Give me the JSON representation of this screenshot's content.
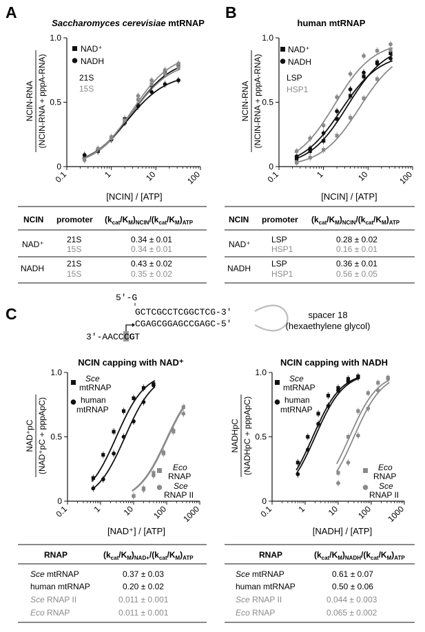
{
  "panels": {
    "A": {
      "letter": "A",
      "title_italic": "Saccharomyces cerevisiae",
      "title_rest": " mtRNAP",
      "ylabel_num": "NCIN-RNA",
      "ylabel_den": "(NCIN-RNA + pppA-RNA)",
      "xlabel": "[NCIN] / [ATP]",
      "legend": [
        "NAD⁺",
        "NADH",
        "21S",
        "15S"
      ],
      "table": {
        "headers": [
          "NCIN",
          "promoter",
          "(kcat/KM)NCIN/(kcat/KM)ATP"
        ],
        "rows": [
          {
            "ncin": "NAD⁺",
            "promoter": "21S",
            "value": "0.34 ± 0.01"
          },
          {
            "ncin": "",
            "promoter": "15S",
            "value": "0.34 ± 0.01"
          },
          {
            "ncin": "NADH",
            "promoter": "21S",
            "value": "0.43 ± 0.02"
          },
          {
            "ncin": "",
            "promoter": "15S",
            "value": "0.35 ± 0.02"
          }
        ]
      }
    },
    "B": {
      "letter": "B",
      "title": "human mtRNAP",
      "ylabel_num": "NCIN-RNA",
      "ylabel_den": "(NCIN-RNA + pppA-RNA)",
      "xlabel": "[NCIN] / [ATP]",
      "legend": [
        "NAD⁺",
        "NADH",
        "LSP",
        "HSP1"
      ],
      "table": {
        "headers": [
          "NCIN",
          "promoter",
          "(kcat/KM)NCIN/(kcat/KM)ATP"
        ],
        "rows": [
          {
            "ncin": "NAD⁺",
            "promoter": "LSP",
            "value": "0.28 ± 0.02"
          },
          {
            "ncin": "",
            "promoter": "HSP1",
            "value": "0.16 ± 0.01"
          },
          {
            "ncin": "NADH",
            "promoter": "LSP",
            "value": "0.36 ± 0.01"
          },
          {
            "ncin": "",
            "promoter": "HSP1",
            "value": "0.56 ± 0.05"
          }
        ]
      }
    },
    "C": {
      "letter": "C",
      "seq_5g": "5'-G",
      "seq_top": "GCTCGCCTCGGCTCG-3'",
      "seq_mid": "CGAGCGGAGCCGAGC-5'",
      "seq_left": "3'-AACCACT",
      "seq_g": "G",
      "seq_c": "C",
      "spacer_1": "spacer 18",
      "spacer_2": "(hexaethylene glycol)",
      "left": {
        "title": "NCIN capping with NAD⁺",
        "ylabel_num": "NAD⁺pC",
        "ylabel_den": "(NAD⁺pC + pppApC)",
        "xlabel": "[NAD⁺] / [ATP]",
        "legend_sce": "Sce",
        "legend_mt": "mtRNAP",
        "legend_human": "human",
        "legend_eco": "Eco",
        "legend_rnap": "RNAP",
        "legend_sce2": "Sce",
        "legend_rnap2": "RNAP II",
        "table": {
          "headers": [
            "RNAP",
            "(kcat/KM)NAD+/(kcat/KM)ATP"
          ],
          "rows": [
            {
              "name_it": "Sce",
              "name_rest": " mtRNAP",
              "value": "0.37 ± 0.03"
            },
            {
              "name_it": "",
              "name_rest": "human mtRNAP",
              "value": "0.20 ± 0.02"
            },
            {
              "name_it": "Sce",
              "name_rest": " RNAP II",
              "value": "0.011 ± 0.001"
            },
            {
              "name_it": "Eco",
              "name_rest": " RNAP",
              "value": "0.011 ± 0.001"
            }
          ]
        }
      },
      "right": {
        "title": "NCIN capping with NADH",
        "ylabel_num": "NADHpC",
        "ylabel_den": "(NADHpC + pppApC)",
        "xlabel": "[NADH] / [ATP]",
        "legend_sce": "Sce",
        "legend_mt": "mtRNAP",
        "legend_human": "human",
        "legend_eco": "Eco",
        "legend_rnap": "RNAP",
        "legend_sce2": "Sce",
        "legend_rnap2": "RNAP II",
        "table": {
          "headers": [
            "RNAP",
            "(kcat/KM)NADH/(kcat/KM)ATP"
          ],
          "rows": [
            {
              "name_it": "Sce",
              "name_rest": " mtRNAP",
              "value": "0.61 ± 0.07"
            },
            {
              "name_it": "",
              "name_rest": "human mtRNAP",
              "value": "0.50 ± 0.06"
            },
            {
              "name_it": "Sce",
              "name_rest": " RNAP II",
              "value": "0.044 ± 0.003"
            },
            {
              "name_it": "Eco",
              "name_rest": " RNAP",
              "value": "0.065 ± 0.002"
            }
          ]
        }
      }
    }
  },
  "colors": {
    "black": "#111111",
    "gray": "#8a8a8a"
  },
  "chart_data": [
    {
      "id": "A",
      "type": "scatter",
      "xscale": "log",
      "xlim": [
        0.1,
        100
      ],
      "ylim": [
        0,
        1
      ],
      "xticks": [
        "0.1",
        "1",
        "10",
        "100"
      ],
      "yticks": [
        "0",
        "0.5",
        "1.0"
      ],
      "series": [
        {
          "name": "NAD⁺ 21S",
          "marker": "square",
          "color": "black",
          "x": [
            0.25,
            0.5,
            1,
            2,
            4,
            8,
            16,
            32
          ],
          "y": [
            0.08,
            0.12,
            0.22,
            0.37,
            0.48,
            0.63,
            0.74,
            0.79
          ],
          "fit": {
            "top": 0.84,
            "ec50": 3.0
          }
        },
        {
          "name": "NAD⁺ 15S",
          "marker": "square",
          "color": "gray",
          "x": [
            0.25,
            0.5,
            1,
            2,
            4,
            8,
            16,
            32
          ],
          "y": [
            0.08,
            0.13,
            0.23,
            0.35,
            0.52,
            0.64,
            0.72,
            0.77
          ],
          "fit": {
            "top": 0.82,
            "ec50": 2.9
          }
        },
        {
          "name": "NADH 21S",
          "marker": "circle",
          "color": "black",
          "x": [
            0.25,
            0.5,
            1,
            2,
            4,
            8,
            16,
            32
          ],
          "y": [
            0.09,
            0.13,
            0.21,
            0.34,
            0.47,
            0.58,
            0.64,
            0.67
          ],
          "fit": {
            "top": 0.72,
            "ec50": 2.3
          }
        },
        {
          "name": "NADH 15S",
          "marker": "circle",
          "color": "gray",
          "x": [
            0.25,
            0.5,
            1,
            2,
            4,
            8,
            16,
            32
          ],
          "y": [
            0.05,
            0.14,
            0.22,
            0.36,
            0.55,
            0.67,
            0.75,
            0.8
          ],
          "fit": {
            "top": 0.88,
            "ec50": 3.0
          }
        }
      ]
    },
    {
      "id": "B",
      "type": "scatter",
      "xscale": "log",
      "xlim": [
        0.1,
        100
      ],
      "ylim": [
        0,
        1
      ],
      "xticks": [
        "0.1",
        "1",
        "10",
        "100"
      ],
      "yticks": [
        "0",
        "0.5",
        "1.0"
      ],
      "series": [
        {
          "name": "NAD⁺ LSP",
          "marker": "square",
          "color": "black",
          "x": [
            0.25,
            0.5,
            1,
            2,
            4,
            8,
            16,
            32
          ],
          "y": [
            0.06,
            0.12,
            0.2,
            0.37,
            0.55,
            0.7,
            0.81,
            0.88
          ],
          "fit": {
            "top": 0.95,
            "ec50": 3.5
          }
        },
        {
          "name": "NAD⁺ HSP1",
          "marker": "square",
          "color": "gray",
          "x": [
            0.25,
            0.5,
            1,
            2,
            4,
            8,
            16,
            32
          ],
          "y": [
            0.03,
            0.07,
            0.13,
            0.24,
            0.38,
            0.53,
            0.68,
            0.91
          ],
          "fit": {
            "top": 0.92,
            "ec50": 6.5
          }
        },
        {
          "name": "NADH LSP",
          "marker": "circle",
          "color": "black",
          "x": [
            0.25,
            0.5,
            1,
            2,
            4,
            8,
            16,
            32
          ],
          "y": [
            0.08,
            0.14,
            0.26,
            0.43,
            0.6,
            0.73,
            0.8,
            0.84
          ],
          "fit": {
            "top": 0.88,
            "ec50": 2.5
          }
        },
        {
          "name": "NADH HSP1",
          "marker": "circle",
          "color": "gray",
          "x": [
            0.25,
            0.5,
            1,
            2,
            4,
            8,
            16,
            32
          ],
          "y": [
            0.12,
            0.22,
            0.32,
            0.54,
            0.72,
            0.86,
            0.9,
            0.95
          ],
          "fit": {
            "top": 0.97,
            "ec50": 1.8
          }
        }
      ]
    },
    {
      "id": "C-left",
      "type": "scatter",
      "xscale": "log",
      "xlim": [
        0.1,
        1000
      ],
      "ylim": [
        0,
        1
      ],
      "xticks": [
        "0.1",
        "1",
        "10",
        "100",
        "1000"
      ],
      "yticks": [
        "0",
        "0.5",
        "1.0"
      ],
      "series": [
        {
          "name": "Sce mtRNAP",
          "marker": "square",
          "color": "black",
          "x": [
            0.6,
            1.2,
            2.5,
            5,
            10,
            20,
            40
          ],
          "y": [
            0.18,
            0.36,
            0.54,
            0.7,
            0.8,
            0.88,
            0.91
          ],
          "fit": {
            "top": 1.0,
            "ec50": 3.0
          }
        },
        {
          "name": "human mtRNAP",
          "marker": "circle",
          "color": "black",
          "x": [
            0.6,
            1.2,
            2.5,
            5,
            10,
            20,
            40
          ],
          "y": [
            0.1,
            0.17,
            0.37,
            0.5,
            0.62,
            0.77,
            0.9
          ],
          "fit": {
            "top": 1.0,
            "ec50": 5.5
          }
        },
        {
          "name": "Eco RNAP",
          "marker": "square",
          "color": "gray",
          "x": [
            10,
            20,
            40,
            80,
            160,
            320
          ],
          "y": [
            0.04,
            0.1,
            0.22,
            0.37,
            0.54,
            0.73
          ],
          "fit": {
            "top": 0.95,
            "ec50": 95
          }
        },
        {
          "name": "Sce RNAP II",
          "marker": "circle",
          "color": "gray",
          "x": [
            10,
            20,
            40,
            80,
            160,
            320
          ],
          "y": [
            0.04,
            0.09,
            0.2,
            0.38,
            0.55,
            0.68
          ],
          "fit": {
            "top": 0.95,
            "ec50": 100
          }
        }
      ]
    },
    {
      "id": "C-right",
      "type": "scatter",
      "xscale": "log",
      "xlim": [
        0.1,
        1000
      ],
      "ylim": [
        0,
        1
      ],
      "xticks": [
        "0.1",
        "1",
        "10",
        "100",
        "1000"
      ],
      "yticks": [
        "0",
        "0.5",
        "1.0"
      ],
      "series": [
        {
          "name": "Sce mtRNAP",
          "marker": "square",
          "color": "black",
          "x": [
            0.6,
            1.2,
            2.5,
            5,
            10,
            20,
            40
          ],
          "y": [
            0.3,
            0.5,
            0.68,
            0.82,
            0.88,
            0.95,
            0.97
          ],
          "fit": {
            "top": 1.0,
            "ec50": 1.7
          }
        },
        {
          "name": "human mtRNAP",
          "marker": "circle",
          "color": "black",
          "x": [
            0.6,
            1.2,
            2.5,
            5,
            10,
            20,
            40
          ],
          "y": [
            0.21,
            0.4,
            0.6,
            0.74,
            0.86,
            0.93,
            0.96
          ],
          "fit": {
            "top": 1.0,
            "ec50": 2.0
          }
        },
        {
          "name": "Eco RNAP",
          "marker": "square",
          "color": "gray",
          "x": [
            10,
            20,
            40,
            80,
            160,
            320
          ],
          "y": [
            0.22,
            0.5,
            0.7,
            0.84,
            0.92,
            0.96
          ],
          "fit": {
            "top": 1.0,
            "ec50": 22
          }
        },
        {
          "name": "Sce RNAP II",
          "marker": "circle",
          "color": "gray",
          "x": [
            10,
            20,
            40,
            80,
            160,
            320
          ],
          "y": [
            0.14,
            0.3,
            0.51,
            0.72,
            0.86,
            0.95
          ],
          "fit": {
            "top": 1.0,
            "ec50": 30
          }
        }
      ]
    }
  ]
}
